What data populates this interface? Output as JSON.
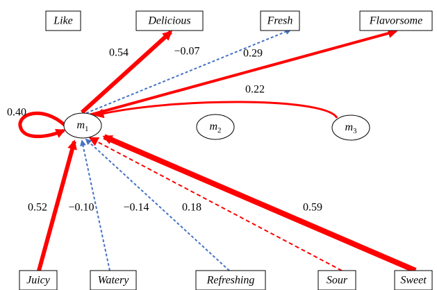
{
  "top_nodes": [
    "Like",
    "Delicious",
    "Fresh",
    "Flavorsome"
  ],
  "bottom_nodes": [
    "Juicy",
    "Watery",
    "Refreshing",
    "Sour",
    "Sweet"
  ],
  "latent_nodes": [
    {
      "label": "m",
      "subscript": "1"
    },
    {
      "label": "m",
      "subscript": "2"
    },
    {
      "label": "m",
      "subscript": "3"
    }
  ],
  "edge_labels": [
    "0.40",
    "0.54",
    "−0.07",
    "0.29",
    "0.22",
    "0.52",
    "−0.10",
    "−0.14",
    "0.18",
    "0.59"
  ]
}
